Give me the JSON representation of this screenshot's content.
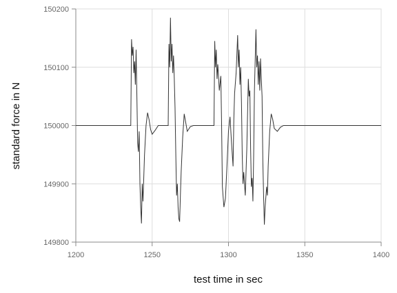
{
  "chart_data": {
    "type": "line",
    "xlabel": "test time in sec",
    "ylabel": "standard force in N",
    "xlim": [
      1200,
      1400
    ],
    "xticks": [
      1200,
      1250,
      1300,
      1350,
      1400
    ],
    "ylim": [
      149800,
      150200
    ],
    "yticks": [
      149800,
      149900,
      150000,
      150100,
      150200
    ],
    "grid": true,
    "x": [
      1200,
      1220,
      1235,
      1236,
      1236.5,
      1237,
      1237.5,
      1238,
      1238.5,
      1239,
      1239.5,
      1240,
      1240.5,
      1241,
      1241.5,
      1242,
      1242.5,
      1243,
      1243.5,
      1244,
      1245,
      1246,
      1247,
      1248,
      1249,
      1250,
      1252,
      1254,
      1260,
      1260.5,
      1261,
      1261.5,
      1262,
      1262.5,
      1263,
      1263.5,
      1264,
      1264.5,
      1265,
      1265.5,
      1266,
      1266.5,
      1267,
      1267.5,
      1268,
      1268.5,
      1269,
      1270,
      1271,
      1272,
      1273,
      1275,
      1277,
      1290,
      1290.5,
      1291,
      1291.5,
      1292,
      1292.5,
      1293,
      1294,
      1295,
      1295.5,
      1296,
      1297,
      1298,
      1299,
      1300,
      1301,
      1302,
      1303,
      1303.5,
      1304,
      1305,
      1306,
      1306.5,
      1307,
      1307.5,
      1308,
      1308.5,
      1309,
      1309.5,
      1310,
      1311,
      1312,
      1313,
      1313.5,
      1314,
      1314.5,
      1315,
      1315.5,
      1316,
      1316.5,
      1317,
      1318,
      1318.5,
      1319,
      1319.5,
      1320,
      1320.5,
      1321,
      1321.5,
      1322,
      1322.5,
      1323,
      1323.5,
      1324,
      1325,
      1325.5,
      1326,
      1327,
      1328,
      1329,
      1330,
      1332,
      1334,
      1336,
      1360,
      1380,
      1400
    ],
    "series": [
      {
        "color": "#333333",
        "values": [
          150000,
          150000,
          150000,
          150000,
          150148,
          150120,
          150135,
          150090,
          150110,
          150070,
          150130,
          150050,
          149970,
          149955,
          149990,
          149900,
          149860,
          149832,
          149900,
          149870,
          149950,
          150000,
          150022,
          150010,
          149993,
          149985,
          149992,
          150000,
          150000,
          150000,
          150140,
          150100,
          150185,
          150110,
          150140,
          150090,
          150120,
          150080,
          150030,
          149950,
          149880,
          149900,
          149860,
          149840,
          149835,
          149880,
          149920,
          149980,
          150020,
          150005,
          149990,
          149998,
          150000,
          150000,
          150000,
          150145,
          150100,
          150130,
          150080,
          150105,
          150060,
          150085,
          150000,
          149895,
          149860,
          149875,
          149930,
          149990,
          150015,
          149970,
          149930,
          150010,
          150055,
          150090,
          150155,
          150100,
          150130,
          150070,
          150100,
          150040,
          149950,
          149900,
          149920,
          149880,
          149960,
          150080,
          150050,
          150060,
          149960,
          149895,
          149910,
          149870,
          149950,
          150060,
          150165,
          150100,
          150120,
          150070,
          150110,
          150060,
          150115,
          150080,
          150050,
          149940,
          149880,
          149830,
          149860,
          149895,
          149880,
          149930,
          149990,
          150020,
          150010,
          149995,
          149990,
          149997,
          150000,
          150000,
          150000,
          150000
        ]
      }
    ]
  }
}
